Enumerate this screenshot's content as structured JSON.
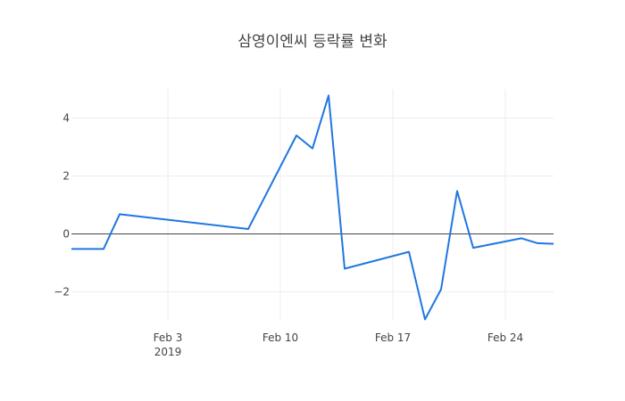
{
  "chart_data": {
    "type": "line",
    "title": "삼영이엔씨 등락률 변화",
    "xlabel": "",
    "ylabel": "",
    "x": [
      "2019-01-28",
      "2019-01-30",
      "2019-01-31",
      "2019-02-08",
      "2019-02-11",
      "2019-02-12",
      "2019-02-13",
      "2019-02-14",
      "2019-02-18",
      "2019-02-19",
      "2019-02-20",
      "2019-02-21",
      "2019-02-22",
      "2019-02-25",
      "2019-02-26",
      "2019-02-27"
    ],
    "series": [
      {
        "values": [
          -0.52,
          -0.52,
          0.68,
          0.17,
          3.4,
          2.95,
          4.78,
          -1.2,
          -0.62,
          -2.95,
          -1.91,
          1.48,
          -0.48,
          -0.15,
          -0.32,
          -0.34
        ]
      }
    ],
    "xlim": [
      "2019-01-28",
      "2019-02-27"
    ],
    "ylim": [
      -3.0,
      5.0
    ],
    "y_ticks": [
      {
        "value": -2,
        "label": "−2"
      },
      {
        "value": 0,
        "label": "0"
      },
      {
        "value": 2,
        "label": "2"
      },
      {
        "value": 4,
        "label": "4"
      }
    ],
    "x_ticks": [
      {
        "date": "2019-02-03",
        "label": "Feb 3",
        "sublabel": "2019"
      },
      {
        "date": "2019-02-10",
        "label": "Feb 10",
        "sublabel": ""
      },
      {
        "date": "2019-02-17",
        "label": "Feb 17",
        "sublabel": ""
      },
      {
        "date": "2019-02-24",
        "label": "Feb 24",
        "sublabel": ""
      }
    ],
    "grid": true,
    "line_color": "#1f77e0",
    "grid_color": "#eeeeee",
    "zero_line_color": "#444444"
  }
}
